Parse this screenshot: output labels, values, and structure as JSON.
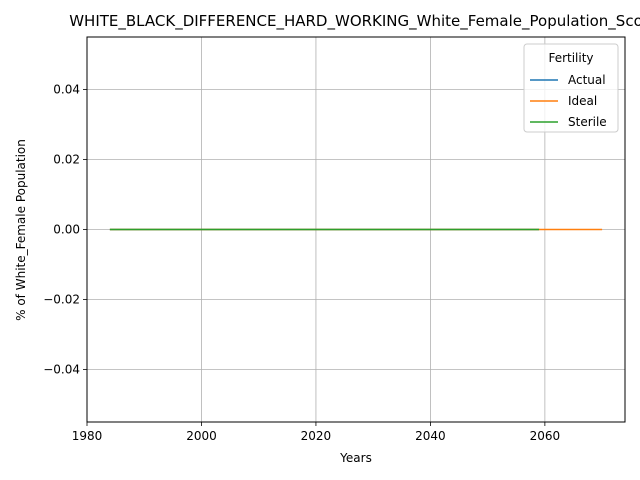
{
  "chart_data": {
    "type": "line",
    "title": "WHITE_BLACK_DIFFERENCE_HARD_WORKING_White_Female_Population_Sco",
    "xlabel": "Years",
    "ylabel": "% of White_Female Population",
    "xlim": [
      1980,
      2074
    ],
    "ylim": [
      -0.055,
      0.055
    ],
    "xticks": [
      1980,
      2000,
      2020,
      2040,
      2060
    ],
    "xtick_labels": [
      "1980",
      "2000",
      "2020",
      "2040",
      "2060"
    ],
    "yticks": [
      -0.04,
      -0.02,
      0.0,
      0.02,
      0.04
    ],
    "ytick_labels": [
      "−0.04",
      "−0.02",
      "0.00",
      "0.02",
      "0.04"
    ],
    "grid": true,
    "legend": {
      "title": "Fertility",
      "placement": "top-right"
    },
    "series": [
      {
        "name": "Actual",
        "color": "#1f77b4",
        "x": [
          1984,
          2059
        ],
        "values": [
          0,
          0
        ]
      },
      {
        "name": "Ideal",
        "color": "#ff7f0e",
        "x": [
          1984,
          2070
        ],
        "values": [
          0,
          0
        ]
      },
      {
        "name": "Sterile",
        "color": "#2ca02c",
        "x": [
          1984,
          2059
        ],
        "values": [
          0,
          0
        ]
      }
    ]
  }
}
